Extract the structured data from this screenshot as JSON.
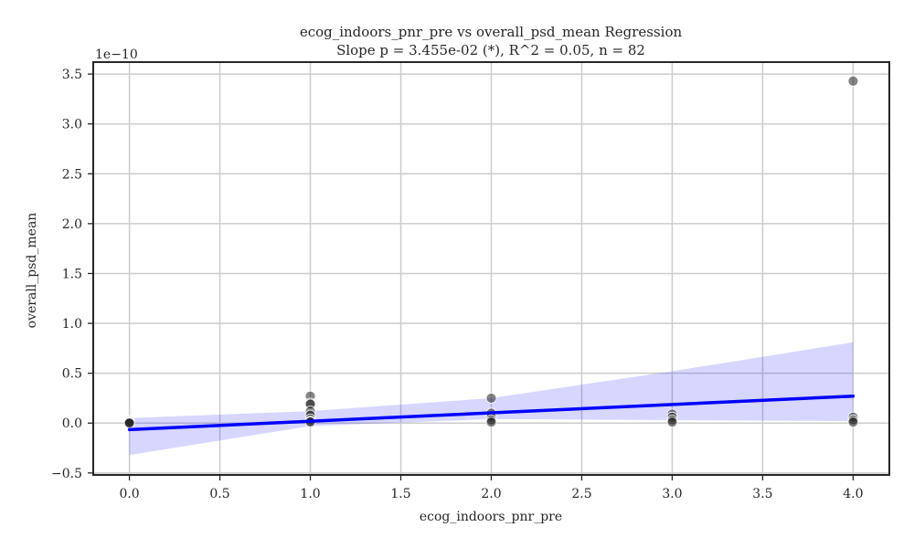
{
  "chart_data": {
    "type": "scatter",
    "title": "ecog_indoors_pnr_pre vs overall_psd_mean Regression",
    "subtitle": "Slope p = 3.455e-02 (*), R^2 = 0.05, n = 82",
    "xlabel": "ecog_indoors_pnr_pre",
    "ylabel": "overall_psd_mean",
    "y_offset_label": "1e−10",
    "xlim": [
      -0.2,
      4.2
    ],
    "ylim": [
      -0.52,
      3.62
    ],
    "x_ticks": [
      0.0,
      0.5,
      1.0,
      1.5,
      2.0,
      2.5,
      3.0,
      3.5,
      4.0
    ],
    "x_tick_labels": [
      "0.0",
      "0.5",
      "1.0",
      "1.5",
      "2.0",
      "2.5",
      "3.0",
      "3.5",
      "4.0"
    ],
    "y_ticks": [
      -0.5,
      0.0,
      0.5,
      1.0,
      1.5,
      2.0,
      2.5,
      3.0,
      3.5
    ],
    "y_tick_labels": [
      "−0.5",
      "0.0",
      "0.5",
      "1.0",
      "1.5",
      "2.0",
      "2.5",
      "3.0",
      "3.5"
    ],
    "grid": true,
    "points": [
      {
        "x": 0,
        "y": 0.02
      },
      {
        "x": 0,
        "y": 0.01
      },
      {
        "x": 0,
        "y": 0.005
      },
      {
        "x": 0,
        "y": 0.0
      },
      {
        "x": 1,
        "y": 0.27
      },
      {
        "x": 1,
        "y": 0.2
      },
      {
        "x": 1,
        "y": 0.19
      },
      {
        "x": 1,
        "y": 0.12
      },
      {
        "x": 1,
        "y": 0.08
      },
      {
        "x": 1,
        "y": 0.04
      },
      {
        "x": 1,
        "y": 0.02
      },
      {
        "x": 1,
        "y": 0.01
      },
      {
        "x": 2,
        "y": 0.25
      },
      {
        "x": 2,
        "y": 0.1
      },
      {
        "x": 2,
        "y": 0.06
      },
      {
        "x": 2,
        "y": 0.03
      },
      {
        "x": 2,
        "y": 0.01
      },
      {
        "x": 3,
        "y": 0.09
      },
      {
        "x": 3,
        "y": 0.06
      },
      {
        "x": 3,
        "y": 0.03
      },
      {
        "x": 3,
        "y": 0.01
      },
      {
        "x": 4,
        "y": 3.43
      },
      {
        "x": 4,
        "y": 0.06
      },
      {
        "x": 4,
        "y": 0.03
      },
      {
        "x": 4,
        "y": 0.01
      }
    ],
    "regression": {
      "x": [
        0,
        4
      ],
      "y": [
        -0.065,
        0.27
      ]
    },
    "ci_band": {
      "x": [
        0,
        1,
        2,
        3,
        4
      ],
      "lower": [
        -0.32,
        -0.03,
        0.04,
        0.03,
        0.02
      ],
      "upper": [
        0.05,
        0.12,
        0.25,
        0.52,
        0.81
      ]
    },
    "colors": {
      "points": "#222222",
      "line": "#0000ff",
      "band": "#0000ff",
      "grid": "#cccccc",
      "axes": "#262626"
    }
  }
}
